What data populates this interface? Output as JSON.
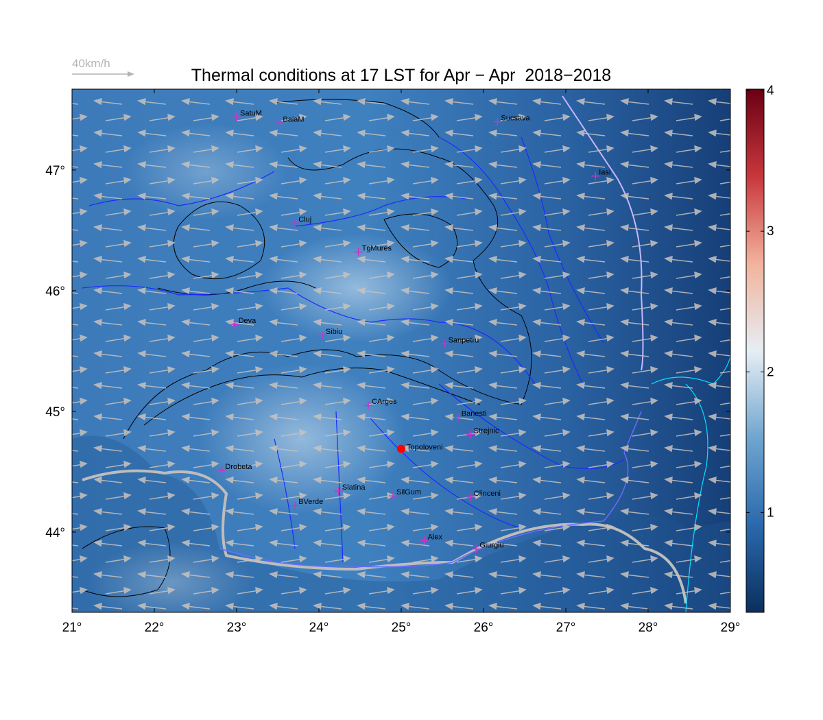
{
  "title": "Thermal conditions at 17 LST for Apr − Apr  2018−2018",
  "legend": {
    "label": "40km/h"
  },
  "map": {
    "xlim": [
      21,
      29
    ],
    "ylim": [
      43.335,
      47.67
    ],
    "xticks": [
      {
        "value": 21,
        "label": "21°"
      },
      {
        "value": 22,
        "label": "22°"
      },
      {
        "value": 23,
        "label": "23°"
      },
      {
        "value": 24,
        "label": "24°"
      },
      {
        "value": 25,
        "label": "25°"
      },
      {
        "value": 26,
        "label": "26°"
      },
      {
        "value": 27,
        "label": "27°"
      },
      {
        "value": 28,
        "label": "28°"
      },
      {
        "value": 29,
        "label": "29°"
      }
    ],
    "yticks": [
      {
        "value": 44,
        "label": "44°"
      },
      {
        "value": 45,
        "label": "45°"
      },
      {
        "value": 46,
        "label": "46°"
      },
      {
        "value": 47,
        "label": "47°"
      }
    ],
    "city_color": "#cc33cc",
    "cities": [
      {
        "name": "SatuM",
        "lon": 23.0,
        "lat": 47.44
      },
      {
        "name": "BaiaM",
        "lon": 23.52,
        "lat": 47.39
      },
      {
        "name": "Sucsava",
        "lon": 26.17,
        "lat": 47.4
      },
      {
        "name": "Iasi",
        "lon": 27.36,
        "lat": 46.95
      },
      {
        "name": "Cluj",
        "lon": 23.71,
        "lat": 46.56
      },
      {
        "name": "TgMures",
        "lon": 24.48,
        "lat": 46.32
      },
      {
        "name": "Deva",
        "lon": 22.98,
        "lat": 45.72
      },
      {
        "name": "Sibiu",
        "lon": 24.04,
        "lat": 45.63
      },
      {
        "name": "Sanpetru",
        "lon": 25.53,
        "lat": 45.56
      },
      {
        "name": "CArges",
        "lon": 24.6,
        "lat": 45.05
      },
      {
        "name": "Banesti",
        "lon": 25.69,
        "lat": 44.95
      },
      {
        "name": "Strejnic",
        "lon": 25.84,
        "lat": 44.81
      },
      {
        "name": "Drobeta",
        "lon": 22.82,
        "lat": 44.51
      },
      {
        "name": "Slatina",
        "lon": 24.24,
        "lat": 44.34
      },
      {
        "name": "SilGum",
        "lon": 24.9,
        "lat": 44.3
      },
      {
        "name": "Clinceni",
        "lon": 25.84,
        "lat": 44.29
      },
      {
        "name": "BVerde",
        "lon": 23.71,
        "lat": 44.22
      },
      {
        "name": "Alex",
        "lon": 25.28,
        "lat": 43.93
      },
      {
        "name": "Giurgiu",
        "lon": 25.91,
        "lat": 43.86
      }
    ],
    "site": {
      "name": "Topoloveni",
      "lon": 25.0,
      "lat": 44.69,
      "color": "#ff0000"
    }
  },
  "colorbar": {
    "lim": [
      0.29,
      4.01
    ],
    "ticks": [
      1,
      2,
      3,
      4
    ],
    "colors": [
      "#0b2f5e",
      "#2a69ad",
      "#6fa5cf",
      "#e6eef4",
      "#f2b39c",
      "#c8373c",
      "#6a0014"
    ]
  }
}
